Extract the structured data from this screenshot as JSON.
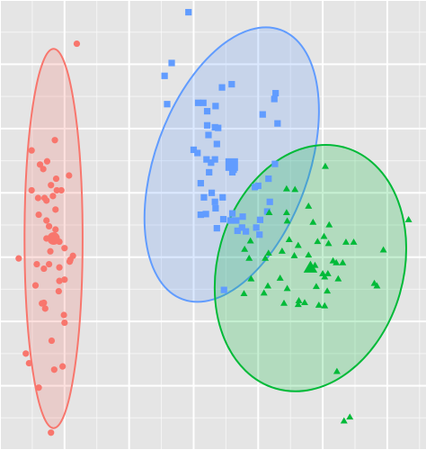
{
  "chart_data": {
    "type": "scatter",
    "title": "",
    "xlabel": "",
    "ylabel": "",
    "xlim": [
      0,
      6.6
    ],
    "ylim": [
      0,
      7.0
    ],
    "grid": true,
    "panel_background": "#E5E5E5",
    "grid_color": "#FFFFFF",
    "legend": "none",
    "series": [
      {
        "color": "#F8766D",
        "marker": "circle",
        "points": [
          [
            1.19,
            6.32
          ],
          [
            0.85,
            4.82
          ],
          [
            0.49,
            4.66
          ],
          [
            0.73,
            4.49
          ],
          [
            0.62,
            4.44
          ],
          [
            0.67,
            4.37
          ],
          [
            1.07,
            4.27
          ],
          [
            0.87,
            4.22
          ],
          [
            0.79,
            4.12
          ],
          [
            0.49,
            4.04
          ],
          [
            0.88,
            4.04
          ],
          [
            0.95,
            4.04
          ],
          [
            0.82,
            3.95
          ],
          [
            0.59,
            3.92
          ],
          [
            0.69,
            3.92
          ],
          [
            0.72,
            3.88
          ],
          [
            0.86,
            3.74
          ],
          [
            0.6,
            3.66
          ],
          [
            0.72,
            3.57
          ],
          [
            0.86,
            3.43
          ],
          [
            0.76,
            3.48
          ],
          [
            0.79,
            3.31
          ],
          [
            0.72,
            3.29
          ],
          [
            0.85,
            3.26
          ],
          [
            0.8,
            3.27
          ],
          [
            0.92,
            3.24
          ],
          [
            1.0,
            3.14
          ],
          [
            0.78,
            3.09
          ],
          [
            0.29,
            2.98
          ],
          [
            1.13,
            3.02
          ],
          [
            1.08,
            2.93
          ],
          [
            1.09,
            2.96
          ],
          [
            0.76,
            2.89
          ],
          [
            0.57,
            2.89
          ],
          [
            0.92,
            2.84
          ],
          [
            0.68,
            2.82
          ],
          [
            1.0,
            2.65
          ],
          [
            0.92,
            2.63
          ],
          [
            0.55,
            2.56
          ],
          [
            0.91,
            2.47
          ],
          [
            0.68,
            2.29
          ],
          [
            0.65,
            2.28
          ],
          [
            0.99,
            2.1
          ],
          [
            1.0,
            1.98
          ],
          [
            0.8,
            1.7
          ],
          [
            0.97,
            1.3
          ],
          [
            0.45,
            1.35
          ],
          [
            0.84,
            1.25
          ],
          [
            0.6,
            0.97
          ],
          [
            0.79,
            0.27
          ],
          [
            0.4,
            1.5
          ],
          [
            0.7,
            2.2
          ]
        ],
        "centroid": [
          0.83,
          3.29
        ],
        "ellipse": {
          "center": [
            0.83,
            3.29
          ],
          "semi_axes": [
            0.45,
            2.95
          ],
          "angle_deg": 0
        }
      },
      {
        "color": "#619CFF",
        "marker": "square",
        "points": [
          [
            2.92,
            6.81
          ],
          [
            2.66,
            6.02
          ],
          [
            2.55,
            5.82
          ],
          [
            2.59,
            5.38
          ],
          [
            3.59,
            5.69
          ],
          [
            3.44,
            5.64
          ],
          [
            4.27,
            5.55
          ],
          [
            4.25,
            5.46
          ],
          [
            3.07,
            5.4
          ],
          [
            3.15,
            5.4
          ],
          [
            3.34,
            5.35
          ],
          [
            3.21,
            5.27
          ],
          [
            4.07,
            5.22
          ],
          [
            3.21,
            5.05
          ],
          [
            3.33,
            5.02
          ],
          [
            3.38,
            5.01
          ],
          [
            3.23,
            4.9
          ],
          [
            4.3,
            5.08
          ],
          [
            3.36,
            4.76
          ],
          [
            3.0,
            4.67
          ],
          [
            3.06,
            4.62
          ],
          [
            3.33,
            4.52
          ],
          [
            3.2,
            4.52
          ],
          [
            3.27,
            4.47
          ],
          [
            4.26,
            4.45
          ],
          [
            3.62,
            4.36
          ],
          [
            3.6,
            4.32
          ],
          [
            3.24,
            4.32
          ],
          [
            4.16,
            4.22
          ],
          [
            3.11,
            4.15
          ],
          [
            4.0,
            4.11
          ],
          [
            3.95,
            4.09
          ],
          [
            3.28,
            4.0
          ],
          [
            3.45,
            3.93
          ],
          [
            3.16,
            3.93
          ],
          [
            3.33,
            3.86
          ],
          [
            4.18,
            3.86
          ],
          [
            3.34,
            3.76
          ],
          [
            4.14,
            3.71
          ],
          [
            3.6,
            3.68
          ],
          [
            3.11,
            3.66
          ],
          [
            3.19,
            3.67
          ],
          [
            3.76,
            3.63
          ],
          [
            3.46,
            3.59
          ],
          [
            3.66,
            3.57
          ],
          [
            3.57,
            3.57
          ],
          [
            3.75,
            3.46
          ],
          [
            4.03,
            3.58
          ],
          [
            3.36,
            3.45
          ],
          [
            3.68,
            3.41
          ],
          [
            3.97,
            3.46
          ],
          [
            4.02,
            3.35
          ],
          [
            3.47,
            2.49
          ],
          [
            3.81,
            3.4
          ]
        ],
        "centroid": [
          3.59,
          4.44
        ],
        "ellipse": {
          "center": [
            3.59,
            4.44
          ],
          "semi_axes": [
            1.19,
            2.23
          ],
          "angle_deg": -20
        }
      },
      {
        "color": "#00BA38",
        "marker": "triangle",
        "points": [
          [
            5.04,
            4.41
          ],
          [
            4.44,
            4.06
          ],
          [
            4.57,
            4.05
          ],
          [
            4.78,
            3.79
          ],
          [
            4.44,
            3.69
          ],
          [
            4.17,
            3.69
          ],
          [
            4.45,
            3.56
          ],
          [
            6.33,
            3.58
          ],
          [
            4.85,
            3.54
          ],
          [
            5.02,
            3.32
          ],
          [
            4.48,
            3.27
          ],
          [
            4.92,
            3.24
          ],
          [
            3.88,
            3.25
          ],
          [
            3.79,
            3.12
          ],
          [
            4.62,
            3.18
          ],
          [
            5.09,
            3.21
          ],
          [
            5.48,
            3.23
          ],
          [
            5.36,
            3.23
          ],
          [
            4.37,
            3.09
          ],
          [
            5.94,
            3.11
          ],
          [
            4.56,
            3.02
          ],
          [
            4.78,
            3.03
          ],
          [
            3.86,
            2.98
          ],
          [
            4.11,
            2.98
          ],
          [
            4.16,
            3.06
          ],
          [
            4.88,
            2.87
          ],
          [
            5.31,
            2.91
          ],
          [
            5.16,
            2.94
          ],
          [
            5.21,
            2.91
          ],
          [
            5.0,
            2.74
          ],
          [
            5.03,
            2.69
          ],
          [
            3.89,
            2.66
          ],
          [
            5.08,
            2.74
          ],
          [
            5.24,
            2.66
          ],
          [
            4.34,
            2.67
          ],
          [
            5.8,
            2.59
          ],
          [
            5.84,
            2.55
          ],
          [
            4.15,
            2.55
          ],
          [
            4.09,
            2.44
          ],
          [
            4.45,
            2.51
          ],
          [
            4.9,
            2.54
          ],
          [
            5.07,
            2.47
          ],
          [
            3.78,
            2.43
          ],
          [
            4.63,
            2.32
          ],
          [
            4.4,
            2.28
          ],
          [
            4.62,
            2.26
          ],
          [
            4.72,
            2.29
          ],
          [
            5.03,
            2.24
          ],
          [
            4.94,
            2.25
          ],
          [
            5.22,
            1.22
          ],
          [
            5.33,
            0.45
          ],
          [
            5.42,
            0.51
          ],
          [
            5.1,
            3.5
          ]
        ],
        "centroid": [
          4.81,
          2.83
        ],
        "ellipse": {
          "center": [
            4.81,
            2.83
          ],
          "semi_axes": [
            1.44,
            1.95
          ],
          "angle_deg": -16
        }
      }
    ]
  }
}
